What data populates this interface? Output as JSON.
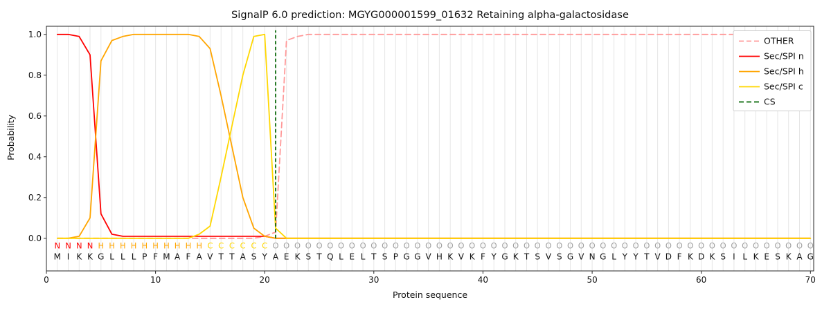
{
  "chart_data": {
    "type": "line",
    "title": "SignalP 6.0 prediction: MGYG000001599_01632 Retaining alpha-galactosidase",
    "xlabel": "Protein sequence",
    "ylabel": "Probability",
    "xlim": [
      0,
      70.3
    ],
    "ylim": [
      -0.16,
      1.04
    ],
    "xticks": [
      0,
      10,
      20,
      30,
      40,
      50,
      60,
      70
    ],
    "yticks": [
      0.0,
      0.2,
      0.4,
      0.6,
      0.8,
      1.0
    ],
    "grid": "vertical-line-per-residue",
    "grid_color": "#e6e6e6",
    "legend_position": "upper right",
    "series": [
      {
        "name": "OTHER",
        "color": "#ff9999",
        "dash": true,
        "values": [
          0.0,
          0.0,
          0.0,
          0.0,
          0.0,
          0.0,
          0.0,
          0.0,
          0.0,
          0.0,
          0.0,
          0.0,
          0.0,
          0.0,
          0.0,
          0.0,
          0.0,
          0.0,
          0.0,
          0.01,
          0.03,
          0.97,
          0.99,
          1.0,
          1.0,
          1.0,
          1.0,
          1.0,
          1.0,
          1.0,
          1.0,
          1.0,
          1.0,
          1.0,
          1.0,
          1.0,
          1.0,
          1.0,
          1.0,
          1.0,
          1.0,
          1.0,
          1.0,
          1.0,
          1.0,
          1.0,
          1.0,
          1.0,
          1.0,
          1.0,
          1.0,
          1.0,
          1.0,
          1.0,
          1.0,
          1.0,
          1.0,
          1.0,
          1.0,
          1.0,
          1.0,
          1.0,
          1.0,
          1.0,
          1.0,
          1.0,
          1.0,
          1.0,
          1.0,
          1.0
        ]
      },
      {
        "name": "Sec/SPI n",
        "color": "#ff0000",
        "dash": false,
        "values": [
          1.0,
          1.0,
          0.99,
          0.9,
          0.12,
          0.02,
          0.01,
          0.01,
          0.01,
          0.01,
          0.01,
          0.01,
          0.01,
          0.01,
          0.01,
          0.01,
          0.01,
          0.01,
          0.01,
          0.01,
          0.0,
          0.0,
          0.0,
          0.0,
          0.0,
          0.0,
          0.0,
          0.0,
          0.0,
          0.0,
          0.0,
          0.0,
          0.0,
          0.0,
          0.0,
          0.0,
          0.0,
          0.0,
          0.0,
          0.0,
          0.0,
          0.0,
          0.0,
          0.0,
          0.0,
          0.0,
          0.0,
          0.0,
          0.0,
          0.0,
          0.0,
          0.0,
          0.0,
          0.0,
          0.0,
          0.0,
          0.0,
          0.0,
          0.0,
          0.0,
          0.0,
          0.0,
          0.0,
          0.0,
          0.0,
          0.0,
          0.0,
          0.0,
          0.0,
          0.0
        ]
      },
      {
        "name": "Sec/SPI h",
        "color": "#ffa500",
        "dash": false,
        "values": [
          0.0,
          0.0,
          0.01,
          0.1,
          0.87,
          0.97,
          0.99,
          1.0,
          1.0,
          1.0,
          1.0,
          1.0,
          1.0,
          0.99,
          0.93,
          0.7,
          0.45,
          0.2,
          0.05,
          0.01,
          0.0,
          0.0,
          0.0,
          0.0,
          0.0,
          0.0,
          0.0,
          0.0,
          0.0,
          0.0,
          0.0,
          0.0,
          0.0,
          0.0,
          0.0,
          0.0,
          0.0,
          0.0,
          0.0,
          0.0,
          0.0,
          0.0,
          0.0,
          0.0,
          0.0,
          0.0,
          0.0,
          0.0,
          0.0,
          0.0,
          0.0,
          0.0,
          0.0,
          0.0,
          0.0,
          0.0,
          0.0,
          0.0,
          0.0,
          0.0,
          0.0,
          0.0,
          0.0,
          0.0,
          0.0,
          0.0,
          0.0,
          0.0,
          0.0,
          0.0
        ]
      },
      {
        "name": "Sec/SPI c",
        "color": "#ffd700",
        "dash": false,
        "values": [
          0.0,
          0.0,
          0.0,
          0.0,
          0.0,
          0.0,
          0.0,
          0.0,
          0.0,
          0.0,
          0.0,
          0.0,
          0.0,
          0.02,
          0.06,
          0.3,
          0.55,
          0.8,
          0.99,
          1.0,
          0.05,
          0.0,
          0.0,
          0.0,
          0.0,
          0.0,
          0.0,
          0.0,
          0.0,
          0.0,
          0.0,
          0.0,
          0.0,
          0.0,
          0.0,
          0.0,
          0.0,
          0.0,
          0.0,
          0.0,
          0.0,
          0.0,
          0.0,
          0.0,
          0.0,
          0.0,
          0.0,
          0.0,
          0.0,
          0.0,
          0.0,
          0.0,
          0.0,
          0.0,
          0.0,
          0.0,
          0.0,
          0.0,
          0.0,
          0.0,
          0.0,
          0.0,
          0.0,
          0.0,
          0.0,
          0.0,
          0.0,
          0.0,
          0.0,
          0.0
        ]
      }
    ],
    "cs_line": {
      "name": "CS",
      "x": 21,
      "color": "#006400",
      "dash": true
    },
    "residue_labels": {
      "classes": [
        "N",
        "N",
        "N",
        "N",
        "H",
        "H",
        "H",
        "H",
        "H",
        "H",
        "H",
        "H",
        "H",
        "H",
        "C",
        "C",
        "C",
        "C",
        "C",
        "C",
        "O",
        "O",
        "O",
        "O",
        "O",
        "O",
        "O",
        "O",
        "O",
        "O",
        "O",
        "O",
        "O",
        "O",
        "O",
        "O",
        "O",
        "O",
        "O",
        "O",
        "O",
        "O",
        "O",
        "O",
        "O",
        "O",
        "O",
        "O",
        "O",
        "O",
        "O",
        "O",
        "O",
        "O",
        "O",
        "O",
        "O",
        "O",
        "O",
        "O",
        "O",
        "O",
        "O",
        "O",
        "O",
        "O",
        "O",
        "O",
        "O",
        "O"
      ],
      "class_colors": {
        "N": "#ff0000",
        "H": "#ffa500",
        "C": "#ffd700",
        "O": "#a0a0a0"
      },
      "sequence": [
        "M",
        "I",
        "K",
        "K",
        "G",
        "L",
        "L",
        "L",
        "P",
        "F",
        "M",
        "A",
        "F",
        "A",
        "V",
        "T",
        "T",
        "A",
        "S",
        "Y",
        "A",
        "E",
        "K",
        "S",
        "T",
        "Q",
        "L",
        "E",
        "L",
        "T",
        "S",
        "P",
        "G",
        "G",
        "V",
        "H",
        "K",
        "V",
        "K",
        "F",
        "Y",
        "G",
        "K",
        "T",
        "S",
        "V",
        "S",
        "G",
        "V",
        "N",
        "G",
        "L",
        "Y",
        "Y",
        "T",
        "V",
        "D",
        "F",
        "K",
        "D",
        "K",
        "S",
        "I",
        "L",
        "K",
        "E",
        "S",
        "K",
        "A",
        "G"
      ],
      "sequence_color": "#111111"
    }
  }
}
